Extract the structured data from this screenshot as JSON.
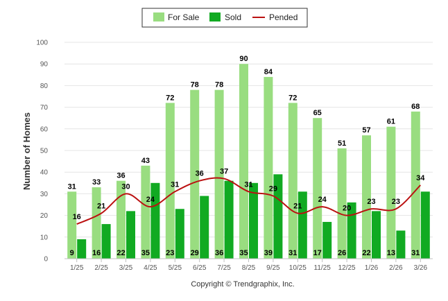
{
  "chart_data": {
    "type": "bar",
    "categories": [
      "1/25",
      "2/25",
      "3/25",
      "4/25",
      "5/25",
      "6/25",
      "7/25",
      "8/25",
      "9/25",
      "10/25",
      "11/25",
      "12/25",
      "1/26",
      "2/26",
      "3/26"
    ],
    "series": [
      {
        "name": "For Sale",
        "kind": "bar",
        "color": "#99dd80",
        "values": [
          31,
          33,
          36,
          43,
          72,
          78,
          78,
          90,
          84,
          72,
          65,
          51,
          57,
          61,
          68
        ]
      },
      {
        "name": "Sold",
        "kind": "bar",
        "color": "#11aa22",
        "values": [
          9,
          16,
          22,
          35,
          23,
          29,
          36,
          35,
          39,
          31,
          17,
          26,
          22,
          13,
          31
        ]
      },
      {
        "name": "Pended",
        "kind": "line",
        "color": "#bb1111",
        "values": [
          16,
          21,
          30,
          24,
          31,
          36,
          37,
          31,
          29,
          21,
          24,
          20,
          23,
          23,
          34
        ]
      }
    ],
    "ylabel": "Number of Homes",
    "ylim": [
      0,
      100
    ],
    "yticks": [
      0,
      10,
      20,
      30,
      40,
      50,
      60,
      70,
      80,
      90,
      100
    ],
    "legend_position": "top-center",
    "credit": "Copyright © Trendgraphix, Inc."
  }
}
